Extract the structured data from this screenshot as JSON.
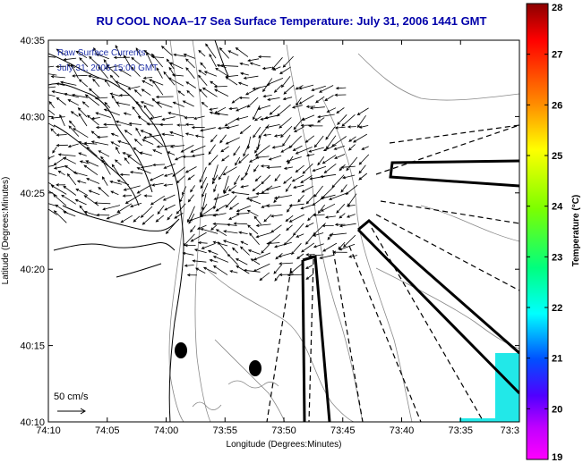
{
  "title": "RU COOL  NOAA–17  Sea Surface Temperature:  July 31, 2006 1441 GMT",
  "inset": {
    "line1": "Raw Surface Currents",
    "line2": "July 31, 2006 15:00 GMT"
  },
  "axes": {
    "xlabel": "Longitude (Degrees:Minutes)",
    "ylabel": "Latitude (Degrees:Minutes)",
    "xticks": [
      "74:10",
      "74:05",
      "74:00",
      "73:55",
      "73:50",
      "73:45",
      "73:40",
      "73:35",
      "73:3"
    ],
    "yticks": [
      "40:35",
      "40:30",
      "40:25",
      "40:20",
      "40:15",
      "40:10"
    ]
  },
  "scale": {
    "label": "50 cm/s"
  },
  "colorbar": {
    "label": "Temperature (°C)",
    "ticks": [
      "28",
      "27",
      "26",
      "25",
      "24",
      "23",
      "22",
      "21",
      "20",
      "19"
    ],
    "range": [
      19,
      28
    ]
  },
  "map": {
    "sst_patch_color": "#22e8e8",
    "coastline_color": "#000000",
    "bathymetry_color": "#888888",
    "vector_color": "#000000"
  }
}
